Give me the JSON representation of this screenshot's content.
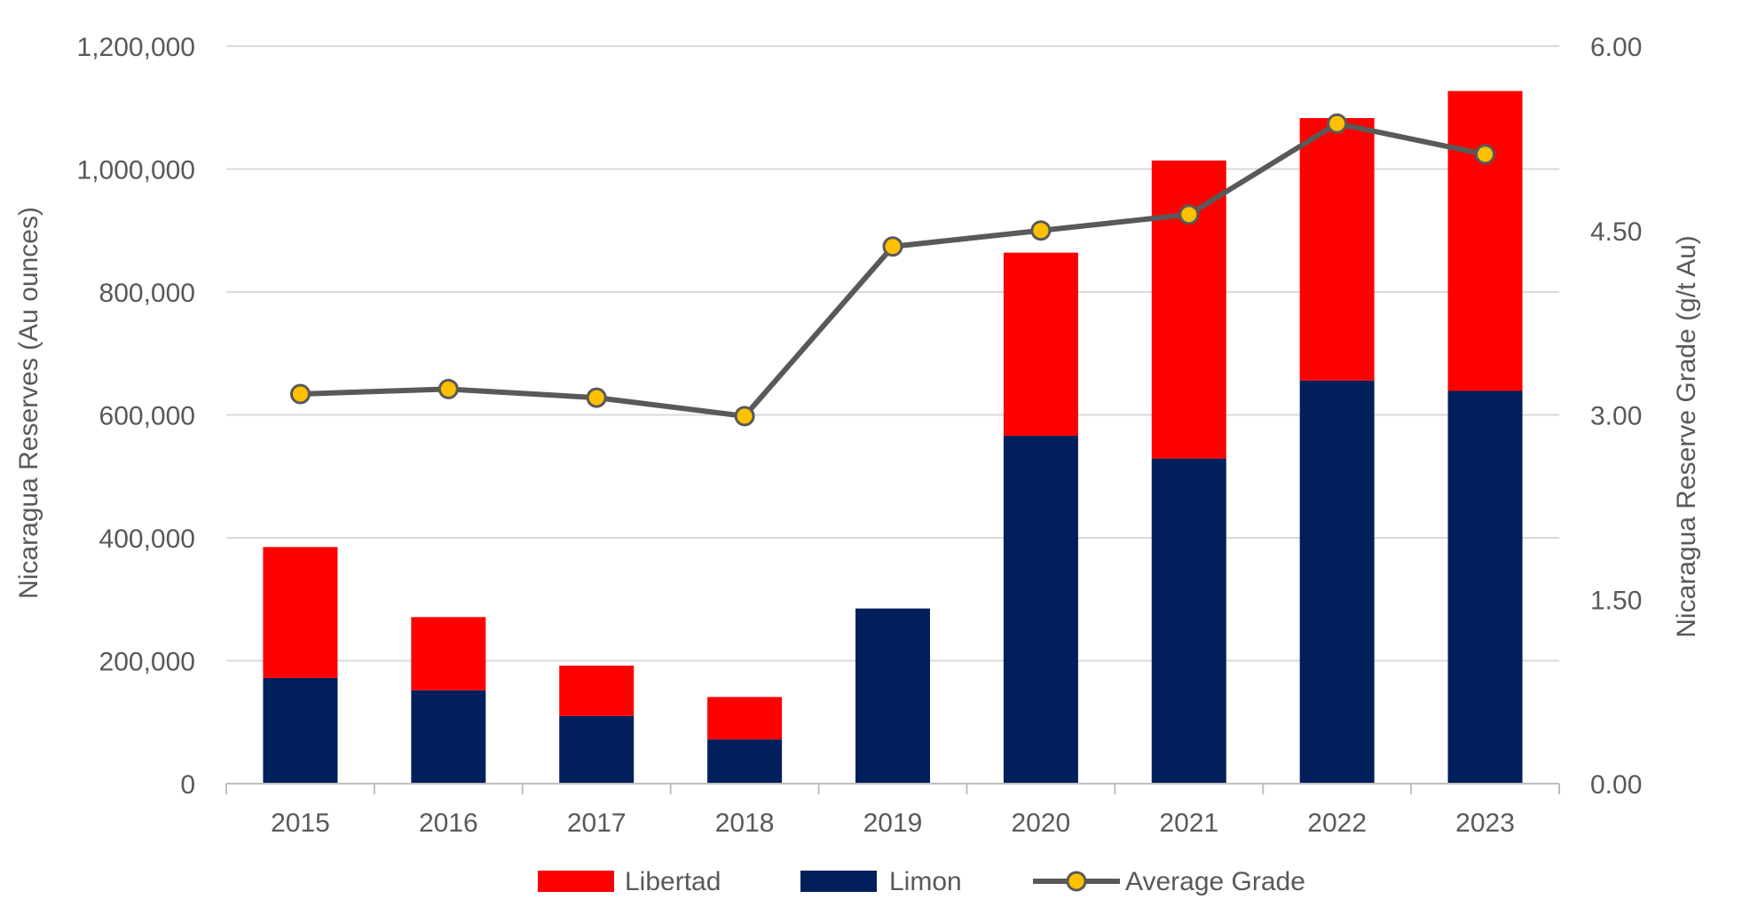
{
  "chart_data": {
    "type": "bar",
    "stacked": true,
    "categories": [
      "2015",
      "2016",
      "2017",
      "2018",
      "2019",
      "2020",
      "2021",
      "2022",
      "2023"
    ],
    "series": [
      {
        "name": "Limon",
        "axis": "left",
        "color": "#001F5B",
        "values": [
          172000,
          152000,
          110000,
          72000,
          285000,
          566000,
          529000,
          656000,
          639000
        ]
      },
      {
        "name": "Libertad",
        "axis": "left",
        "color": "#FF0000",
        "values": [
          213000,
          119000,
          82000,
          69000,
          0,
          298000,
          485000,
          427000,
          488000
        ]
      }
    ],
    "line_series": {
      "name": "Average Grade",
      "axis": "right",
      "color": "#595959",
      "marker_color": "#FFC000",
      "values": [
        3.17,
        3.21,
        3.14,
        2.99,
        4.37,
        4.5,
        4.63,
        5.37,
        5.12
      ]
    },
    "yleft": {
      "label": "Nicaragua Reserves (Au ounces)",
      "lim": [
        0,
        1200000
      ],
      "ticks": [
        0,
        200000,
        400000,
        600000,
        800000,
        1000000,
        1200000
      ],
      "tick_labels": [
        "0",
        "200,000",
        "400,000",
        "600,000",
        "800,000",
        "1,000,000",
        "1,200,000"
      ]
    },
    "yright": {
      "label": "Nicaragua Reserve Grade (g/t Au)",
      "lim": [
        0,
        6
      ],
      "ticks": [
        0,
        1.5,
        3,
        4.5,
        6
      ],
      "tick_labels": [
        "0.00",
        "1.50",
        "3.00",
        "4.50",
        "6.00"
      ]
    },
    "legend": {
      "position": "bottom",
      "items": [
        {
          "label": "Libertad",
          "kind": "bar",
          "color": "#FF0000"
        },
        {
          "label": "Limon",
          "kind": "bar",
          "color": "#001F5B"
        },
        {
          "label": "Average Grade",
          "kind": "line",
          "color": "#595959",
          "marker_color": "#FFC000"
        }
      ]
    },
    "grid": true
  }
}
